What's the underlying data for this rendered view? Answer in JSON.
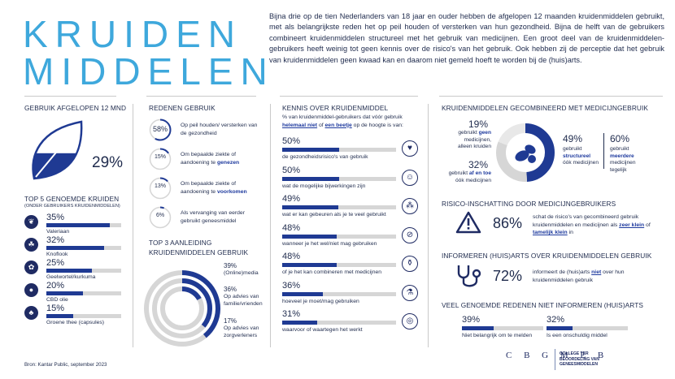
{
  "title": {
    "line1": "KRUIDEN",
    "line2": "MIDDELEN"
  },
  "intro": "Bijna drie op de tien Nederlanders van 18 jaar en ouder hebben de afgelopen 12 maanden kruidenmiddelen gebruikt, met als belangrijkste reden het op peil houden of versterken van hun gezondheid. Bijna de helft van de gebruikers combineert kruidenmiddelen structureel met het gebruik van medicijnen. Een groot deel van de kruidenmiddelen-gebruikers heeft weinig tot geen kennis over de risico's van het gebruik. Ook hebben zij de perceptie dat het gebruik van kruidenmiddelen geen kwaad kan en daarom niet gemeld hoeft te worden bij de (huis)arts.",
  "usage": {
    "heading": "GEBRUIK AFGELOPEN 12 MND",
    "value": "29%",
    "fraction": 0.29
  },
  "top5": {
    "heading": "TOP 5 GENOEMDE KRUIDEN",
    "subheading": "(ONDER GEBRUIKERS KRUIDENMIDDELEN)",
    "items": [
      {
        "pct": "35%",
        "label": "Valeriaan",
        "value": 35,
        "icon": "leaf-icon"
      },
      {
        "pct": "32%",
        "label": "Knoflook",
        "value": 32,
        "icon": "garlic-icon"
      },
      {
        "pct": "25%",
        "label": "Geelwortel/kurkuma",
        "value": 25,
        "icon": "root-icon"
      },
      {
        "pct": "20%",
        "label": "CBD olie",
        "value": 20,
        "icon": "oil-drop-icon"
      },
      {
        "pct": "15%",
        "label": "Groene thee (capsules)",
        "value": 15,
        "icon": "tea-leaf-icon"
      }
    ]
  },
  "reasons": {
    "heading": "REDENEN GEBRUIK",
    "items": [
      {
        "pct": "58%",
        "value": 58,
        "pre": "Op peil houden/ versterken van de gezondheid",
        "bold": "",
        "post": ""
      },
      {
        "pct": "15%",
        "value": 15,
        "pre": "Om bepaalde ziekte of aandoening te ",
        "bold": "genezen",
        "post": ""
      },
      {
        "pct": "13%",
        "value": 13,
        "pre": "Om bepaalde ziekte of aandoening te ",
        "bold": "voorkomen",
        "post": ""
      },
      {
        "pct": "6%",
        "value": 6,
        "pre": "Als vervanging van eerder gebruikt geneesmiddel",
        "bold": "",
        "post": ""
      }
    ]
  },
  "top3": {
    "heading1": "TOP 3 AANLEIDING",
    "heading2": "KRUIDENMIDDELEN GEBRUIK",
    "items": [
      {
        "pct": "39%",
        "label": "(Online)media",
        "value": 39
      },
      {
        "pct": "36%",
        "label": "Op advies van familie/vrienden",
        "value": 36
      },
      {
        "pct": "17%",
        "label": "Op advies van zorgverleners",
        "value": 17
      }
    ]
  },
  "knowledge": {
    "heading": "KENNIS OVER KRUIDENMIDDEL",
    "sub_pre": "% van kruidenmiddel-gebruikers dat vóór gebruik ",
    "sub_u1": "helemaal niet",
    "sub_mid": " of ",
    "sub_u2": "een beetje",
    "sub_post": " op de hoogte is van:",
    "items": [
      {
        "pct": "50%",
        "value": 50,
        "label": "de gezondheidsrisico's van gebruik",
        "icon": "heart-pulse-icon"
      },
      {
        "pct": "50%",
        "value": 50,
        "label": "wat de mogelijke bijwerkingen zijn",
        "icon": "head-icon"
      },
      {
        "pct": "49%",
        "value": 49,
        "label": "wat er kan gebeuren als je te veel gebruikt",
        "icon": "pills-icon"
      },
      {
        "pct": "48%",
        "value": 48,
        "label": "wanneer je het wel/niet mag gebruiken",
        "icon": "no-pill-icon"
      },
      {
        "pct": "48%",
        "value": 48,
        "label": "of je het kan combineren met medicijnen",
        "icon": "pill-bottle-icon"
      },
      {
        "pct": "36%",
        "value": 36,
        "label": "hoeveel je moet/mag gebruiken",
        "icon": "mortar-icon"
      },
      {
        "pct": "31%",
        "value": 31,
        "label": "waarvoor of waartegen het werkt",
        "icon": "target-icon"
      }
    ]
  },
  "combined": {
    "heading": "KRUIDENMIDDELEN GECOMBINEERD MET MEDICIJNGEBRUIK",
    "a": {
      "pct": "19%",
      "value": 19,
      "pre": "gebruikt ",
      "bold": "geen",
      "post": " medicijnen, alleen kruiden"
    },
    "b": {
      "pct": "32%",
      "value": 32,
      "pre": "gebruikt ",
      "bold": "af en toe",
      "post": " óók medicijnen"
    },
    "c": {
      "pct": "49%",
      "value": 49,
      "pre": "gebruikt ",
      "bold": "structureel",
      "post": " óók medicijnen"
    },
    "d": {
      "pct": "60%",
      "pre": "gebruikt ",
      "bold": "meerdere",
      "post": " medicijnen tegelijk"
    }
  },
  "risk": {
    "heading": "RISICO-INSCHATTING DOOR MEDICIJNGEBRUIKERS",
    "pct": "86%",
    "pre": "schat de risico's van gecombineerd gebruik kruidenmiddelen en medicijnen als ",
    "u1": "zeer klein",
    "mid": " of ",
    "u2": "tamelijk klein",
    "post": " in"
  },
  "inform": {
    "heading": "INFORMEREN (HUIS)ARTS OVER KRUIDENMIDDELEN GEBRUIK",
    "pct": "72%",
    "pre": "informeert de (huis)arts ",
    "u": "niet",
    "post": " over hun kruidenmiddelen gebruik"
  },
  "notinform": {
    "heading": "VEEL GENOEMDE REDENEN NIET INFORMEREN (HUIS)ARTS",
    "items": [
      {
        "pct": "39%",
        "value": 39,
        "label": "Niet belangrijk om te melden"
      },
      {
        "pct": "32%",
        "value": 32,
        "label": "Is een onschuldig middel"
      }
    ]
  },
  "source": "Bron: Kantar Public, september 2023",
  "logo": {
    "letters": "C B G M E B",
    "text1": "COLLEGE TER",
    "text2": "BEOORDELING VAN",
    "text3": "GENEESMIDDELEN"
  },
  "colors": {
    "accent": "#3ea8dc",
    "navy": "#1f3a93",
    "grey": "#d6d6d6"
  }
}
